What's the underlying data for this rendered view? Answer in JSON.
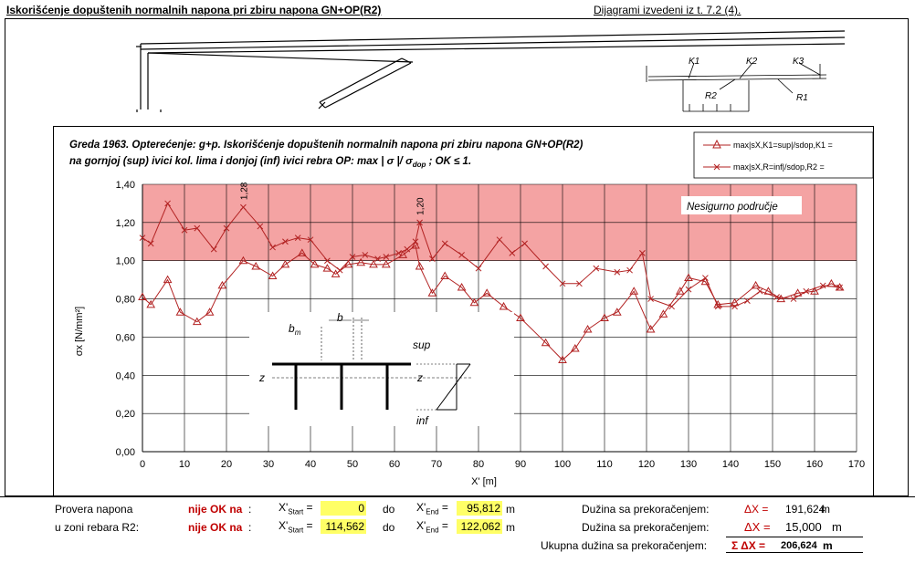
{
  "header": {
    "title": "Iskorišćenje dopuštenih normalnih napona pri zbiru napona GN+OP(R2)",
    "note": "Dijagrami izvedeni iz t. 7.2 (4)."
  },
  "sketch": {
    "labels": [
      "K1",
      "K2",
      "K3",
      "R2",
      "R1"
    ]
  },
  "inset": {
    "bm": "b",
    "bm_sub": "m",
    "b": "b",
    "sup": "sup",
    "z_left": "z",
    "z_right": "z",
    "inf": "inf"
  },
  "chart_data": {
    "type": "line",
    "title_line1": "Greda 1963. Opterećenje: g+p. Iskorišćenje dopuštenih normalnih napona pri zbiru napona GN+OP(R2)",
    "title_line2_a": "na gornjoj (sup) ivici kol. lima i donjoj (inf) ivici rebra OP: max | σ |/ σ",
    "title_line2_sub": "dop",
    "title_line2_b": " ;  OK ≤ 1.",
    "xlabel": "X'  [m]",
    "ylabel": "σx  [N/mm²]",
    "xlim": [
      0,
      170
    ],
    "ylim": [
      0,
      1.4
    ],
    "xticks": [
      0,
      10,
      20,
      30,
      40,
      50,
      60,
      70,
      80,
      90,
      100,
      110,
      120,
      130,
      140,
      150,
      160,
      170
    ],
    "yticks": [
      "0,00",
      "0,20",
      "0,40",
      "0,60",
      "0,80",
      "1,00",
      "1,20",
      "1,40"
    ],
    "unsafe_zone": {
      "from": 1.0,
      "to": 1.4,
      "label": "Nesigurno područje",
      "color": "#f4a3a3"
    },
    "grid": true,
    "legend_position": "top-right",
    "series": [
      {
        "name": "max|sX,K1=sup|/sdop,K1 =",
        "marker": "triangle",
        "color": "#b22222",
        "points": [
          [
            0,
            0.81
          ],
          [
            2,
            0.77
          ],
          [
            6,
            0.9
          ],
          [
            9,
            0.73
          ],
          [
            13,
            0.68
          ],
          [
            16,
            0.73
          ],
          [
            19,
            0.87
          ],
          [
            24,
            1.0
          ],
          [
            27,
            0.97
          ],
          [
            31,
            0.92
          ],
          [
            34,
            0.98
          ],
          [
            38,
            1.04
          ],
          [
            41,
            0.98
          ],
          [
            44,
            0.96
          ],
          [
            46,
            0.93
          ],
          [
            49,
            0.98
          ],
          [
            52,
            0.99
          ],
          [
            55,
            0.98
          ],
          [
            58,
            0.98
          ],
          [
            62,
            1.03
          ],
          [
            65,
            1.08
          ],
          [
            66,
            0.97
          ],
          [
            69,
            0.83
          ],
          [
            72,
            0.92
          ],
          [
            76,
            0.86
          ],
          [
            79,
            0.78
          ],
          [
            82,
            0.83
          ],
          [
            86,
            0.76
          ],
          [
            90,
            0.7
          ],
          [
            96,
            0.57
          ],
          [
            100,
            0.48
          ],
          [
            103,
            0.54
          ],
          [
            106,
            0.64
          ],
          [
            110,
            0.7
          ],
          [
            113,
            0.73
          ],
          [
            117,
            0.84
          ],
          [
            121,
            0.64
          ],
          [
            124,
            0.72
          ],
          [
            128,
            0.84
          ],
          [
            130,
            0.91
          ],
          [
            134,
            0.89
          ],
          [
            137,
            0.77
          ],
          [
            141,
            0.78
          ],
          [
            146,
            0.87
          ],
          [
            149,
            0.84
          ],
          [
            152,
            0.8
          ],
          [
            156,
            0.83
          ],
          [
            160,
            0.84
          ],
          [
            164,
            0.88
          ],
          [
            166,
            0.86
          ]
        ]
      },
      {
        "name": "max|sX,R=inf|/sdop,R2 =",
        "marker": "x",
        "color": "#b22222",
        "points": [
          [
            0,
            1.12
          ],
          [
            2,
            1.09
          ],
          [
            6,
            1.3
          ],
          [
            10,
            1.16
          ],
          [
            13,
            1.17
          ],
          [
            17,
            1.06
          ],
          [
            20,
            1.17
          ],
          [
            24,
            1.28
          ],
          [
            28,
            1.18
          ],
          [
            31,
            1.07
          ],
          [
            34,
            1.1
          ],
          [
            37,
            1.12
          ],
          [
            40,
            1.11
          ],
          [
            44,
            1.0
          ],
          [
            47,
            0.95
          ],
          [
            50,
            1.02
          ],
          [
            53,
            1.03
          ],
          [
            56,
            1.01
          ],
          [
            58,
            1.02
          ],
          [
            61,
            1.04
          ],
          [
            63,
            1.06
          ],
          [
            65,
            1.1
          ],
          [
            66,
            1.2
          ],
          [
            69,
            1.01
          ],
          [
            72,
            1.09
          ],
          [
            76,
            1.03
          ],
          [
            80,
            0.96
          ],
          [
            85,
            1.11
          ],
          [
            88,
            1.04
          ],
          [
            91,
            1.09
          ],
          [
            96,
            0.97
          ],
          [
            100,
            0.88
          ],
          [
            104,
            0.88
          ],
          [
            108,
            0.96
          ],
          [
            113,
            0.94
          ],
          [
            116,
            0.95
          ],
          [
            119,
            1.04
          ],
          [
            121,
            0.8
          ],
          [
            126,
            0.76
          ],
          [
            130,
            0.85
          ],
          [
            134,
            0.91
          ],
          [
            137,
            0.76
          ],
          [
            141,
            0.76
          ],
          [
            144,
            0.79
          ],
          [
            147,
            0.84
          ],
          [
            151,
            0.81
          ],
          [
            155,
            0.8
          ],
          [
            158,
            0.84
          ],
          [
            162,
            0.87
          ],
          [
            166,
            0.86
          ]
        ]
      }
    ],
    "annotations": [
      {
        "x": 24,
        "y": 1.28,
        "text": "1,28"
      },
      {
        "x": 66,
        "y": 1.2,
        "text": "1,20"
      }
    ]
  },
  "summary": {
    "row1": {
      "label": "Provera napona",
      "status": "nije OK na",
      "colon": ":",
      "xstart_label": "X'",
      "start_sub": "Start",
      "eq": "=",
      "xstart": "0",
      "do": "do",
      "xend_label": "X'",
      "end_sub": "End",
      "xend": "95,812",
      "unit": "m",
      "duz_label": "Dužina sa prekoračenjem:",
      "dx_label": "ΔX =",
      "dx_value": "191,624",
      "dx_unit": "m"
    },
    "row2": {
      "label": "u zoni rebara R2:",
      "status": "nije OK na",
      "colon": ":",
      "xstart_label": "X'",
      "start_sub": "Start",
      "eq": "=",
      "xstart": "114,562",
      "do": "do",
      "xend_label": "X'",
      "end_sub": "End",
      "xend": "122,062",
      "unit": "m",
      "duz_label": "Dužina sa prekoračenjem:",
      "dx_label": "ΔX =",
      "dx_value": "15,000",
      "dx_unit": "m"
    },
    "row3": {
      "label": "Ukupna dužina sa prekoračenjem:",
      "sum_label": "Σ ΔX =",
      "sum_value": "206,624",
      "unit": "m"
    }
  },
  "colors": {
    "unsafe": "#f4a3a3",
    "series": "#b22222",
    "highlight": "#ffff66",
    "status": "#c00000"
  }
}
